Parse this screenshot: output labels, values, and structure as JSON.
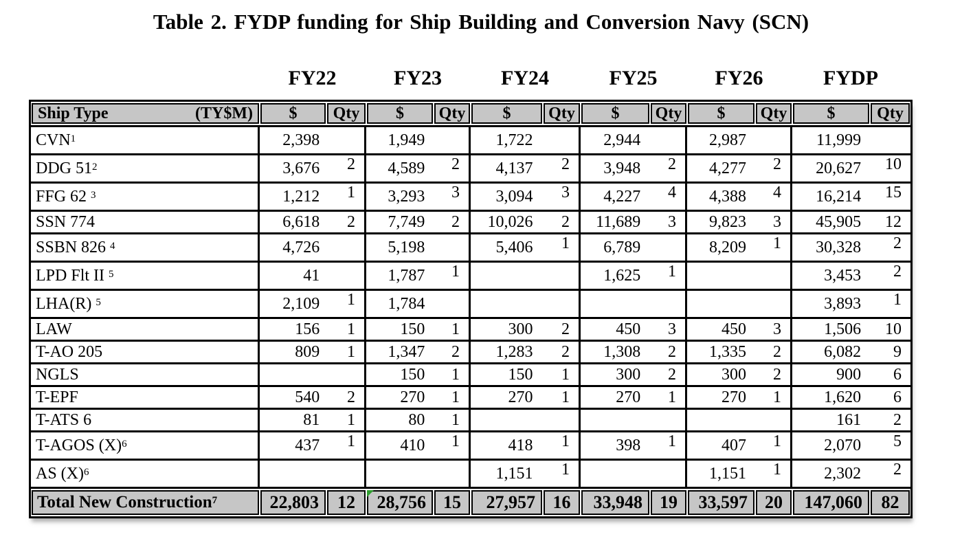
{
  "title": "Table 2.  FYDP funding for Ship Building and Conversion Navy (SCN)",
  "years": [
    "FY22",
    "FY23",
    "FY24",
    "FY25",
    "FY26",
    "FYDP"
  ],
  "header": {
    "ship_type": "Ship Type",
    "unit_label": "(TY$M)",
    "dollar_label": "$",
    "qty_label": "Qty"
  },
  "rows": [
    {
      "label": "CVN",
      "sup": "1",
      "sup_space": false,
      "tall": true,
      "cells": [
        [
          "2,398",
          ""
        ],
        [
          "1,949",
          ""
        ],
        [
          "1,722",
          ""
        ],
        [
          "2,944",
          ""
        ],
        [
          "2,987",
          ""
        ],
        [
          "11,999",
          ""
        ]
      ]
    },
    {
      "label": "DDG 51",
      "sup": "2",
      "sup_space": false,
      "tall": true,
      "cells": [
        [
          "3,676",
          "2"
        ],
        [
          "4,589",
          "2"
        ],
        [
          "4,137",
          "2"
        ],
        [
          "3,948",
          "2"
        ],
        [
          "4,277",
          "2"
        ],
        [
          "20,627",
          "10"
        ]
      ]
    },
    {
      "label": "FFG 62",
      "sup": "3",
      "sup_space": true,
      "tall": true,
      "cells": [
        [
          "1,212",
          "1"
        ],
        [
          "3,293",
          "3"
        ],
        [
          "3,094",
          "3"
        ],
        [
          "4,227",
          "4"
        ],
        [
          "4,388",
          "4"
        ],
        [
          "16,214",
          "15"
        ]
      ]
    },
    {
      "label": "SSN 774",
      "sup": "",
      "sup_space": false,
      "tall": false,
      "cells": [
        [
          "6,618",
          "2"
        ],
        [
          "7,749",
          "2"
        ],
        [
          "10,026",
          "2"
        ],
        [
          "11,689",
          "3"
        ],
        [
          "9,823",
          "3"
        ],
        [
          "45,905",
          "12"
        ]
      ]
    },
    {
      "label": "SSBN 826",
      "sup": "4",
      "sup_space": true,
      "tall": true,
      "cells": [
        [
          "4,726",
          ""
        ],
        [
          "5,198",
          ""
        ],
        [
          "5,406",
          "1"
        ],
        [
          "6,789",
          ""
        ],
        [
          "8,209",
          "1"
        ],
        [
          "30,328",
          "2"
        ]
      ]
    },
    {
      "label": "LPD Flt II",
      "sup": "5",
      "sup_space": true,
      "tall": true,
      "cells": [
        [
          "41",
          ""
        ],
        [
          "1,787",
          "1"
        ],
        [
          "",
          ""
        ],
        [
          "1,625",
          "1"
        ],
        [
          "",
          ""
        ],
        [
          "3,453",
          "2"
        ]
      ]
    },
    {
      "label": "LHA(R)",
      "sup": "5",
      "sup_space": true,
      "tall": true,
      "cells": [
        [
          "2,109",
          "1"
        ],
        [
          "1,784",
          ""
        ],
        [
          "",
          ""
        ],
        [
          "",
          ""
        ],
        [
          "",
          ""
        ],
        [
          "3,893",
          "1"
        ]
      ]
    },
    {
      "label": "LAW",
      "sup": "",
      "sup_space": false,
      "tall": false,
      "cells": [
        [
          "156",
          "1"
        ],
        [
          "150",
          "1"
        ],
        [
          "300",
          "2"
        ],
        [
          "450",
          "3"
        ],
        [
          "450",
          "3"
        ],
        [
          "1,506",
          "10"
        ]
      ]
    },
    {
      "label": "T-AO 205",
      "sup": "",
      "sup_space": false,
      "tall": false,
      "cells": [
        [
          "809",
          "1"
        ],
        [
          "1,347",
          "2"
        ],
        [
          "1,283",
          "2"
        ],
        [
          "1,308",
          "2"
        ],
        [
          "1,335",
          "2"
        ],
        [
          "6,082",
          "9"
        ]
      ]
    },
    {
      "label": "NGLS",
      "sup": "",
      "sup_space": false,
      "tall": false,
      "cells": [
        [
          "",
          ""
        ],
        [
          "150",
          "1"
        ],
        [
          "150",
          "1"
        ],
        [
          "300",
          "2"
        ],
        [
          "300",
          "2"
        ],
        [
          "900",
          "6"
        ]
      ]
    },
    {
      "label": "T-EPF",
      "sup": "",
      "sup_space": false,
      "tall": false,
      "cells": [
        [
          "540",
          "2"
        ],
        [
          "270",
          "1"
        ],
        [
          "270",
          "1"
        ],
        [
          "270",
          "1"
        ],
        [
          "270",
          "1"
        ],
        [
          "1,620",
          "6"
        ]
      ]
    },
    {
      "label": "T-ATS 6",
      "sup": "",
      "sup_space": false,
      "tall": false,
      "cells": [
        [
          "81",
          "1"
        ],
        [
          "80",
          "1"
        ],
        [
          "",
          ""
        ],
        [
          "",
          ""
        ],
        [
          "",
          ""
        ],
        [
          "161",
          "2"
        ]
      ]
    },
    {
      "label": "T-AGOS (X)",
      "sup": "6",
      "sup_space": false,
      "tall": true,
      "cells": [
        [
          "437",
          "1"
        ],
        [
          "410",
          "1"
        ],
        [
          "418",
          "1"
        ],
        [
          "398",
          "1"
        ],
        [
          "407",
          "1"
        ],
        [
          "2,070",
          "5"
        ]
      ]
    },
    {
      "label": "AS (X)",
      "sup": "6",
      "sup_space": false,
      "tall": true,
      "cells": [
        [
          "",
          ""
        ],
        [
          "",
          ""
        ],
        [
          "1,151",
          "1"
        ],
        [
          "",
          ""
        ],
        [
          "1,151",
          "1"
        ],
        [
          "2,302",
          "2"
        ]
      ]
    }
  ],
  "total_row": {
    "label": "Total New Construction",
    "sup": "7",
    "marker_cell": 1,
    "cells": [
      [
        "22,803",
        "12"
      ],
      [
        "28,756",
        "15"
      ],
      [
        "27,957",
        "16"
      ],
      [
        "33,948",
        "19"
      ],
      [
        "33,597",
        "20"
      ],
      [
        "147,060",
        "82"
      ]
    ]
  },
  "colors": {
    "header_background": "#c6c6c6",
    "border": "#000000",
    "comment_marker": "#2f9e2f",
    "page_background": "#ffffff"
  }
}
